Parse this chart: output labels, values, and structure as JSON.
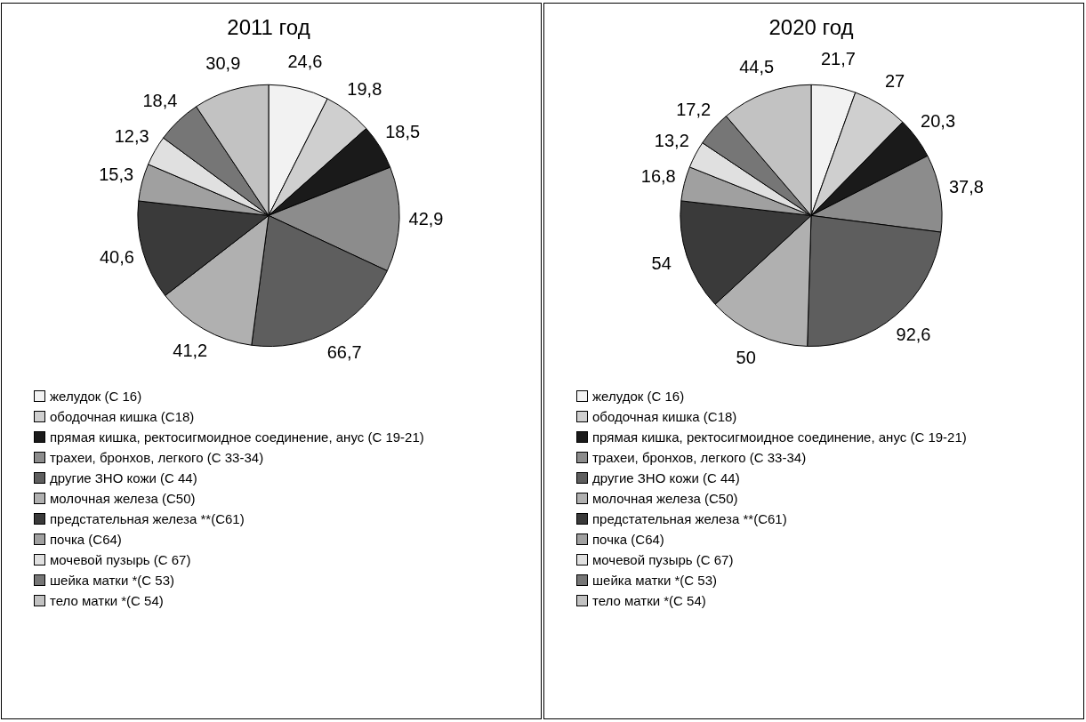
{
  "chart_data": [
    {
      "type": "pie",
      "title": "2011 год",
      "categories": [
        "желудок (С 16)",
        "ободочная кишка (С18)",
        "прямая кишка, ректосигмоидное соединение, анус (С 19-21)",
        "трахеи, бронхов, легкого (С 33-34)",
        "другие ЗНО кожи (С 44)",
        "молочная железа (С50)",
        "предстательная железа **(С61)",
        "почка (С64)",
        "мочевой пузырь (С 67)",
        "шейка матки *(С 53)",
        "тело матки *(С 54)"
      ],
      "values": [
        24.6,
        19.8,
        18.5,
        42.9,
        66.7,
        41.2,
        40.6,
        15.3,
        12.3,
        18.4,
        30.9
      ],
      "value_labels": [
        "24,6",
        "19,8",
        "18,5",
        "42,9",
        "66,7",
        "41,2",
        "40,6",
        "15,3",
        "12,3",
        "18,4",
        "30,9"
      ],
      "colors": [
        "#f2f2f2",
        "#cfcfcf",
        "#1a1a1a",
        "#8c8c8c",
        "#5e5e5e",
        "#b0b0b0",
        "#3a3a3a",
        "#a0a0a0",
        "#e0e0e0",
        "#767676",
        "#c2c2c2"
      ],
      "legend": "bottom"
    },
    {
      "type": "pie",
      "title": "2020 год",
      "categories": [
        "желудок (С 16)",
        "ободочная кишка (С18)",
        "прямая кишка, ректосигмоидное соединение, анус (С 19-21)",
        "трахеи, бронхов, легкого (С 33-34)",
        "другие ЗНО кожи (С 44)",
        "молочная железа (С50)",
        "предстательная железа **(С61)",
        "почка (С64)",
        "мочевой пузырь (С 67)",
        "шейка матки *(С 53)",
        "тело матки *(С 54)"
      ],
      "values": [
        21.7,
        27,
        20.3,
        37.8,
        92.6,
        50,
        54,
        16.8,
        13.2,
        17.2,
        44.5
      ],
      "value_labels": [
        "21,7",
        "27",
        "20,3",
        "37,8",
        "92,6",
        "50",
        "54",
        "16,8",
        "13,2",
        "17,2",
        "44,5"
      ],
      "colors": [
        "#f2f2f2",
        "#cfcfcf",
        "#1a1a1a",
        "#8c8c8c",
        "#5e5e5e",
        "#b0b0b0",
        "#3a3a3a",
        "#a0a0a0",
        "#e0e0e0",
        "#767676",
        "#c2c2c2"
      ],
      "legend": "bottom"
    }
  ]
}
